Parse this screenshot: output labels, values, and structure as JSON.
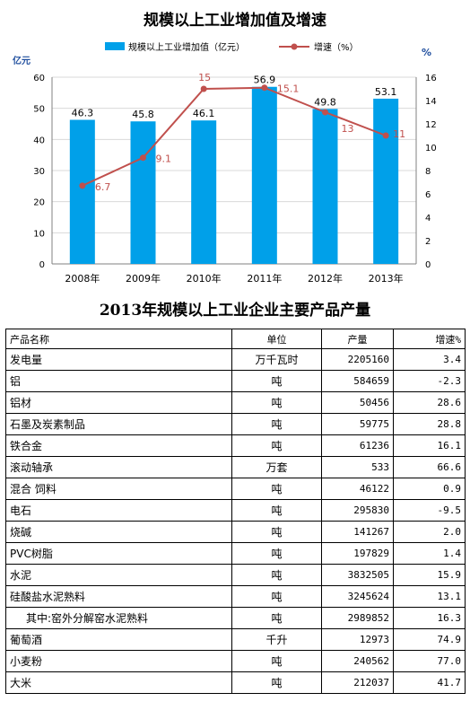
{
  "chart_data": {
    "type": "bar",
    "title": "规模以上工业增加值及增速",
    "categories": [
      "2008年",
      "2009年",
      "2010年",
      "2011年",
      "2012年",
      "2013年"
    ],
    "left_unit": "亿元",
    "right_unit": "%",
    "ylim": [
      0,
      60
    ],
    "y_ticks": [
      0,
      10,
      20,
      30,
      40,
      50,
      60
    ],
    "y2lim": [
      0,
      16
    ],
    "y2_ticks": [
      0,
      2,
      4,
      6,
      8,
      10,
      12,
      14,
      16
    ],
    "legend_position": "top",
    "series": [
      {
        "name": "规模以上工业增加值（亿元）",
        "type": "bar",
        "axis": "left",
        "values": [
          46.3,
          45.8,
          46.1,
          56.9,
          49.8,
          53.1
        ],
        "color": "#00A0E9"
      },
      {
        "name": "增速（%）",
        "type": "line",
        "axis": "right",
        "values": [
          6.7,
          9.1,
          15,
          15.1,
          13,
          11
        ],
        "color": "#C0504D"
      }
    ]
  },
  "table": {
    "title": "2013年规模以上工业企业主要产品产量",
    "headers": [
      "产品名称",
      "单位",
      "产量",
      "增速%"
    ],
    "rows": [
      {
        "name": "发电量",
        "unit": "万千瓦时",
        "output": "2205160",
        "growth": "3.4"
      },
      {
        "name": "铝",
        "unit": "吨",
        "output": "584659",
        "growth": "-2.3"
      },
      {
        "name": "铝材",
        "unit": "吨",
        "output": "50456",
        "growth": "28.6"
      },
      {
        "name": "石墨及炭素制品",
        "unit": "吨",
        "output": "59775",
        "growth": "28.8"
      },
      {
        "name": "铁合金",
        "unit": "吨",
        "output": "61236",
        "growth": "16.1"
      },
      {
        "name": "滚动轴承",
        "unit": "万套",
        "output": "533",
        "growth": "66.6"
      },
      {
        "name": "混合 饲料",
        "unit": "吨",
        "output": "46122",
        "growth": "0.9"
      },
      {
        "name": "电石",
        "unit": "吨",
        "output": "295830",
        "growth": "-9.5"
      },
      {
        "name": "烧碱",
        "unit": "吨",
        "output": "141267",
        "growth": "2.0"
      },
      {
        "name": "PVC树脂",
        "unit": "吨",
        "output": "197829",
        "growth": "1.4"
      },
      {
        "name": "水泥",
        "unit": "吨",
        "output": "3832505",
        "growth": "15.9"
      },
      {
        "name": "硅酸盐水泥熟料",
        "unit": "吨",
        "output": "3245624",
        "growth": "13.1"
      },
      {
        "name": "其中:窑外分解窑水泥熟料",
        "unit": "吨",
        "output": "2989852",
        "growth": "16.3",
        "indent": true
      },
      {
        "name": "葡萄酒",
        "unit": "千升",
        "output": "12973",
        "growth": "74.9"
      },
      {
        "name": "小麦粉",
        "unit": "吨",
        "output": "240562",
        "growth": "77.0"
      },
      {
        "name": "大米",
        "unit": "吨",
        "output": "212037",
        "growth": "41.7"
      }
    ]
  }
}
